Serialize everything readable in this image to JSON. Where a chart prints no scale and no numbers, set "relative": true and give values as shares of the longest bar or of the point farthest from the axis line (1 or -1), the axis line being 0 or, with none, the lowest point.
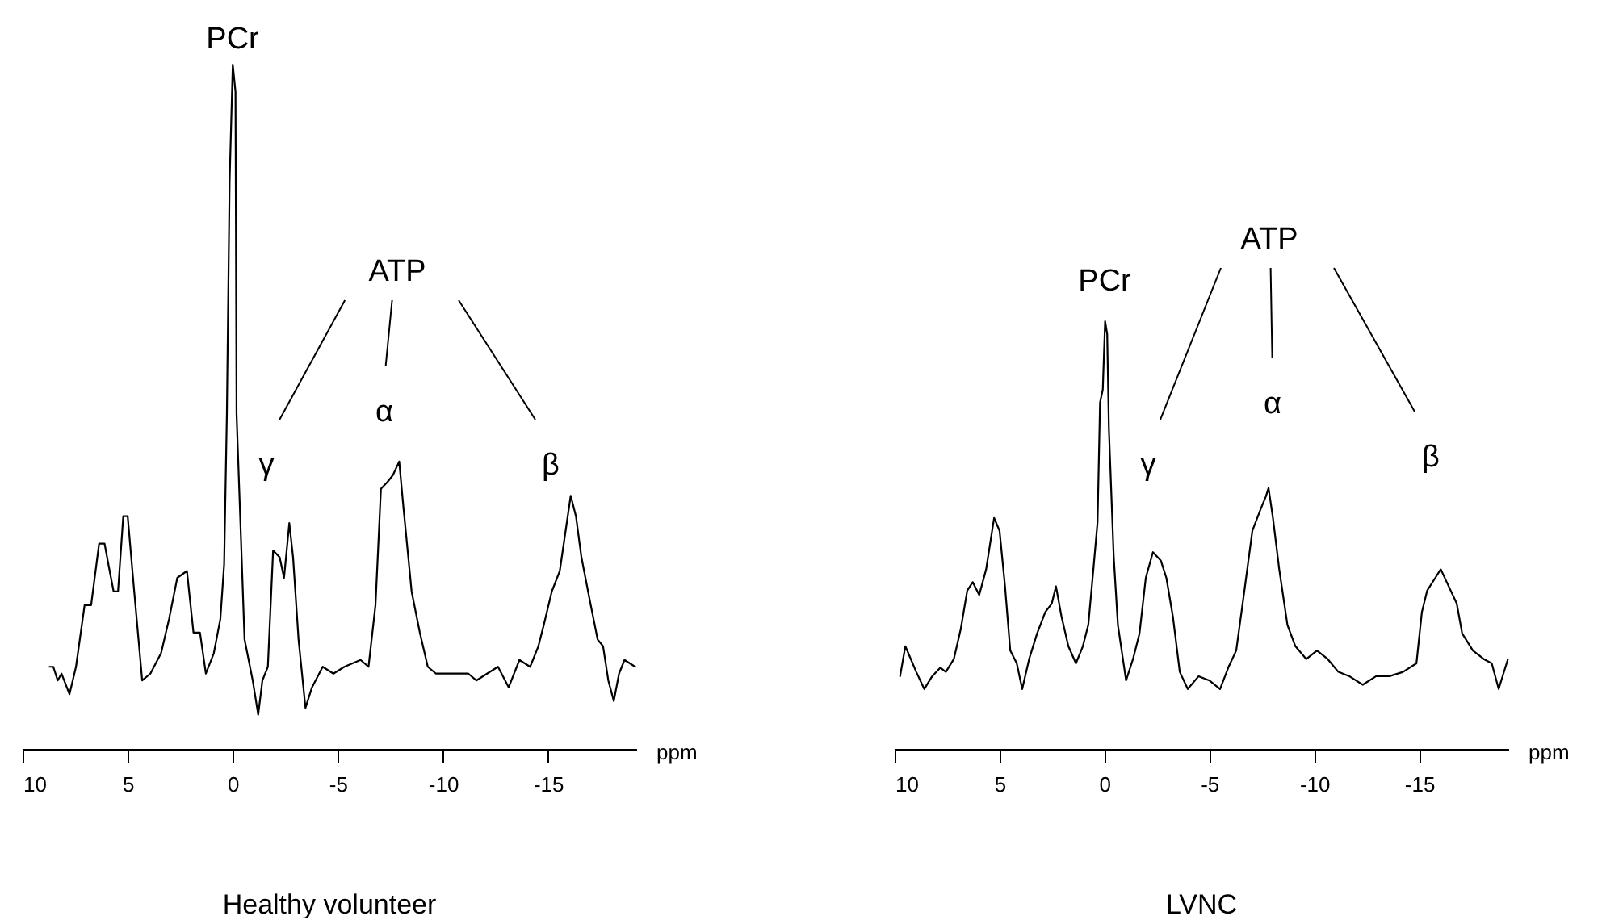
{
  "chart_data": [
    {
      "type": "line",
      "title": "Healthy volunteer",
      "xlabel": "ppm",
      "relative": true,
      "tick_labels": "x",
      "xlim": [
        10,
        -19.2
      ],
      "xticks": [
        10,
        5,
        0,
        -5,
        -10,
        -15
      ],
      "x": [
        8.72,
        8.54,
        8.33,
        8.15,
        7.77,
        7.46,
        7.05,
        6.74,
        6.36,
        6.1,
        5.92,
        5.67,
        5.46,
        5.21,
        5.0,
        4.69,
        4.31,
        3.92,
        3.41,
        3.03,
        2.64,
        2.18,
        1.87,
        1.56,
        1.28,
        0.9,
        0.59,
        0.41,
        0.28,
        0.15,
        0,
        -0.13,
        -0.18,
        -0.33,
        -0.56,
        -0.95,
        -1.21,
        -1.41,
        -1.67,
        -1.92,
        -2.23,
        -2.44,
        -2.69,
        -2.87,
        -3.13,
        -3.46,
        -3.77,
        -4.28,
        -4.79,
        -5.31,
        -6.08,
        -6.46,
        -6.79,
        -7.05,
        -7.36,
        -7.62,
        -7.92,
        -8.13,
        -8.51,
        -8.9,
        -9.28,
        -9.67,
        -10.18,
        -10.69,
        -11.21,
        -11.59,
        -12.1,
        -12.62,
        -13.13,
        -13.64,
        -14.15,
        -14.54,
        -14.79,
        -15.18,
        -15.56,
        -16.08,
        -16.33,
        -16.59,
        -16.97,
        -17.36,
        -17.62,
        -17.87,
        -18.13,
        -18.38,
        -18.64,
        -19.15
      ],
      "series": [
        {
          "color": "#000000",
          "values": [
            0.12,
            0.12,
            0.1,
            0.11,
            0.08,
            0.12,
            0.21,
            0.21,
            0.3,
            0.3,
            0.27,
            0.23,
            0.23,
            0.34,
            0.34,
            0.23,
            0.1,
            0.11,
            0.14,
            0.19,
            0.25,
            0.26,
            0.17,
            0.17,
            0.11,
            0.14,
            0.19,
            0.27,
            0.49,
            0.83,
            1,
            0.96,
            0.49,
            0.36,
            0.16,
            0.1,
            0.05,
            0.1,
            0.12,
            0.29,
            0.28,
            0.25,
            0.33,
            0.28,
            0.16,
            0.06,
            0.09,
            0.12,
            0.11,
            0.12,
            0.13,
            0.12,
            0.21,
            0.38,
            0.39,
            0.4,
            0.42,
            0.35,
            0.23,
            0.17,
            0.12,
            0.11,
            0.11,
            0.11,
            0.11,
            0.1,
            0.11,
            0.12,
            0.09,
            0.13,
            0.12,
            0.15,
            0.18,
            0.23,
            0.26,
            0.37,
            0.34,
            0.28,
            0.22,
            0.16,
            0.15,
            0.1,
            0.07,
            0.11,
            0.13,
            0.12
          ]
        }
      ],
      "annotations": [
        "PCr",
        "ATP",
        "γ",
        "α",
        "β"
      ]
    },
    {
      "type": "line",
      "title": "LVNC",
      "xlabel": "ppm",
      "relative": true,
      "tick_labels": "x",
      "xlim": [
        10,
        -19.25
      ],
      "xticks": [
        10,
        5,
        0,
        -5,
        -10,
        -15
      ],
      "x": [
        9.74,
        9.49,
        9.23,
        8.97,
        8.59,
        8.21,
        7.82,
        7.56,
        7.18,
        6.85,
        6.54,
        6.28,
        5.97,
        5.64,
        5.26,
        5.0,
        4.74,
        4.49,
        4.18,
        3.92,
        3.59,
        3.21,
        2.82,
        2.51,
        2.31,
        2.05,
        1.72,
        1.36,
        1.03,
        0.77,
        0.51,
        0.33,
        0.21,
        0.08,
        -0.03,
        -0.13,
        -0.21,
        -0.44,
        -0.64,
        -1.03,
        -1.36,
        -1.67,
        -1.97,
        -2.31,
        -2.69,
        -2.95,
        -3.26,
        -3.59,
        -3.97,
        -4.49,
        -5.0,
        -5.51,
        -5.9,
        -6.28,
        -6.67,
        -7.05,
        -7.44,
        -7.69,
        -7.82,
        -8.03,
        -8.33,
        -8.72,
        -9.1,
        -9.62,
        -10.13,
        -10.64,
        -11.15,
        -11.67,
        -12.31,
        -12.95,
        -13.59,
        -14.23,
        -14.87,
        -15.13,
        -15.38,
        -15.77,
        -16.03,
        -16.41,
        -16.79,
        -17.05,
        -17.56,
        -18.08,
        -18.46,
        -18.79,
        -19.23
      ],
      "series": [
        {
          "color": "#000000",
          "values": [
            0.17,
            0.24,
            0.21,
            0.18,
            0.14,
            0.17,
            0.19,
            0.18,
            0.21,
            0.28,
            0.37,
            0.39,
            0.36,
            0.42,
            0.54,
            0.51,
            0.38,
            0.23,
            0.2,
            0.14,
            0.21,
            0.27,
            0.32,
            0.34,
            0.38,
            0.31,
            0.24,
            0.2,
            0.24,
            0.29,
            0.43,
            0.53,
            0.81,
            0.84,
            1,
            0.97,
            0.75,
            0.45,
            0.29,
            0.16,
            0.21,
            0.27,
            0.4,
            0.46,
            0.44,
            0.4,
            0.31,
            0.18,
            0.14,
            0.17,
            0.16,
            0.14,
            0.19,
            0.23,
            0.37,
            0.51,
            0.56,
            0.59,
            0.61,
            0.54,
            0.42,
            0.29,
            0.24,
            0.21,
            0.23,
            0.21,
            0.18,
            0.17,
            0.15,
            0.17,
            0.17,
            0.18,
            0.2,
            0.32,
            0.37,
            0.4,
            0.42,
            0.38,
            0.34,
            0.27,
            0.23,
            0.21,
            0.2,
            0.14,
            0.21
          ]
        }
      ],
      "annotations": [
        "PCr",
        "ATP",
        "γ",
        "α",
        "β"
      ]
    }
  ]
}
